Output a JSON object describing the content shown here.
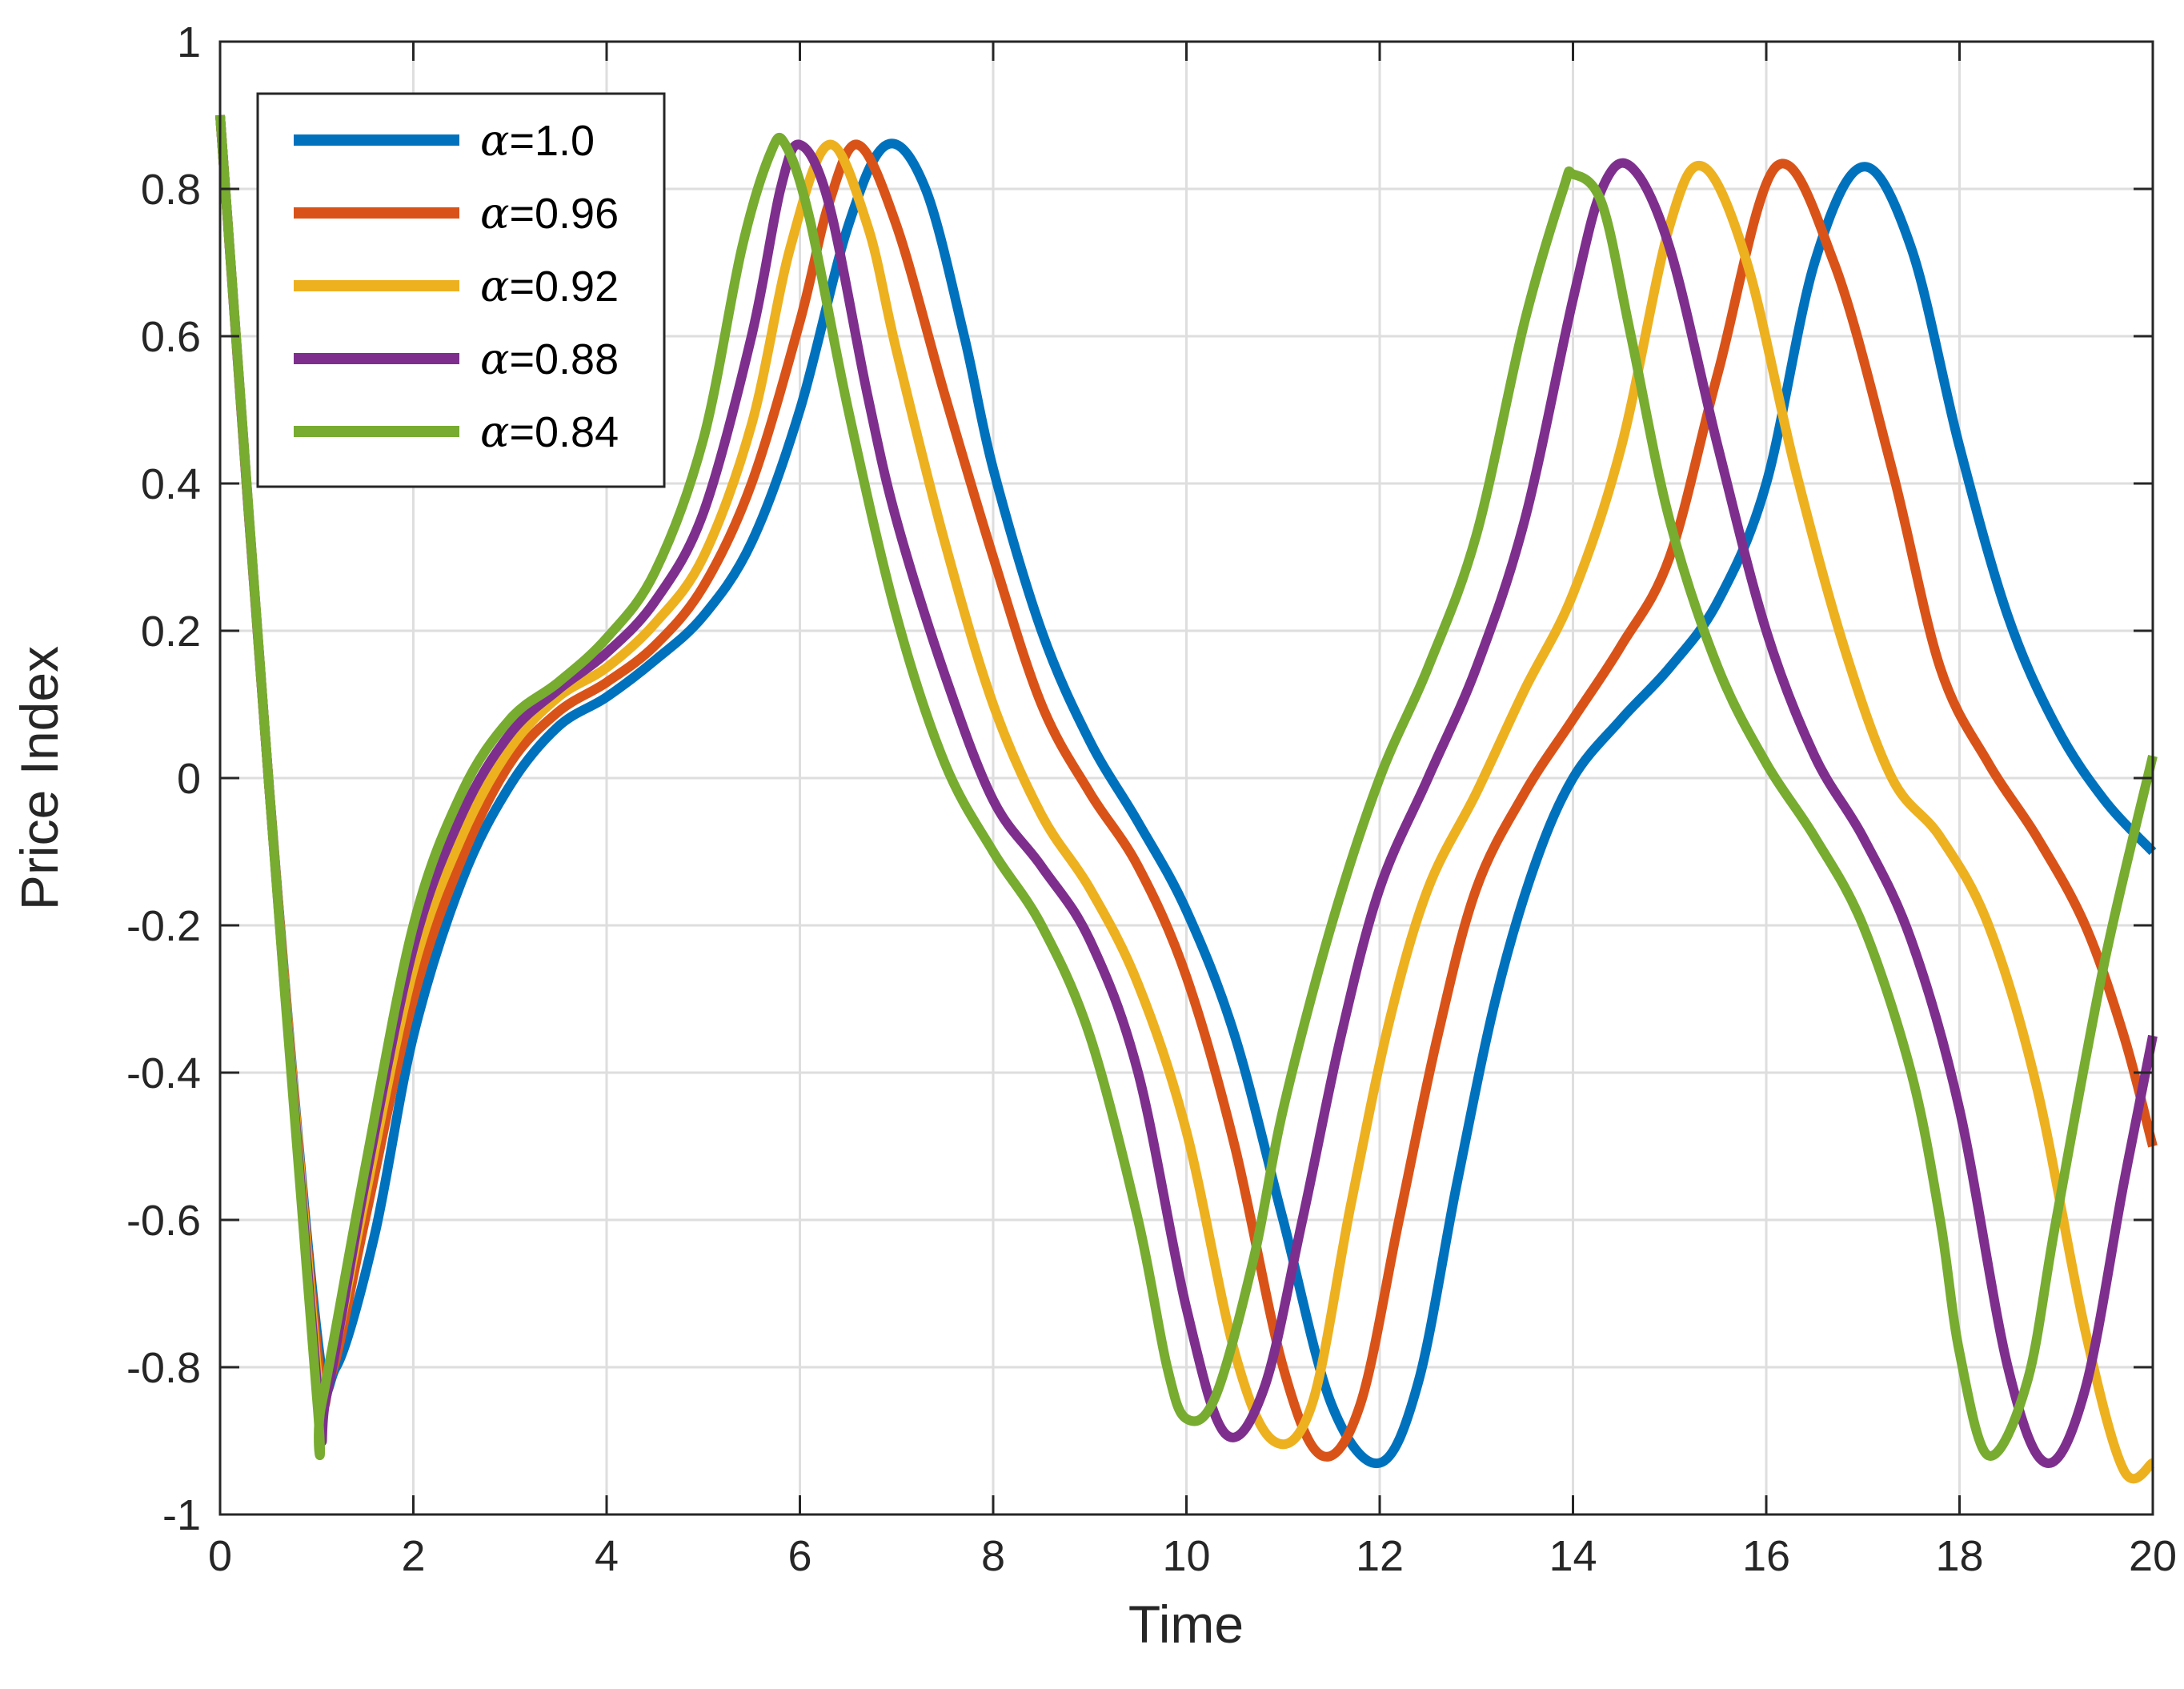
{
  "chart_data": {
    "type": "line",
    "xlabel": "Time",
    "ylabel": "Price Index",
    "xlim": [
      0,
      20
    ],
    "ylim": [
      -1,
      1
    ],
    "xticks": [
      0,
      2,
      4,
      6,
      8,
      10,
      12,
      14,
      16,
      18,
      20
    ],
    "xtick_labels": [
      "0",
      "2",
      "4",
      "6",
      "8",
      "10",
      "12",
      "14",
      "16",
      "18",
      "20"
    ],
    "yticks": [
      -1,
      -0.8,
      -0.6,
      -0.4,
      -0.2,
      0,
      0.2,
      0.4,
      0.6,
      0.8,
      1
    ],
    "ytick_labels": [
      "-1",
      "-0.8",
      "-0.6",
      "-0.4",
      "-0.2",
      "0",
      "0.2",
      "0.4",
      "0.6",
      "0.8",
      "1"
    ],
    "grid": true,
    "legend_position": "top-left",
    "series": [
      {
        "name": "α=1.0",
        "name_symbol": "α",
        "name_value": "=1.0",
        "color": "#0072BD",
        "x": [
          0,
          0.5,
          1.0,
          1.2,
          1.6,
          2.0,
          2.5,
          3.0,
          3.5,
          4.0,
          4.5,
          5.0,
          5.5,
          6.0,
          6.5,
          6.9,
          7.3,
          7.7,
          8.0,
          8.5,
          9.0,
          9.5,
          10.0,
          10.5,
          11.0,
          11.5,
          12.0,
          12.4,
          12.8,
          13.2,
          13.6,
          14.0,
          14.5,
          15.0,
          15.5,
          16.0,
          16.5,
          17.0,
          17.5,
          18.0,
          18.5,
          19.0,
          19.5,
          20.0
        ],
        "y": [
          0.9,
          0.0,
          -0.75,
          -0.8,
          -0.62,
          -0.35,
          -0.14,
          -0.01,
          0.07,
          0.11,
          0.16,
          0.22,
          0.32,
          0.5,
          0.75,
          0.86,
          0.8,
          0.6,
          0.42,
          0.2,
          0.05,
          -0.06,
          -0.18,
          -0.35,
          -0.6,
          -0.85,
          -0.93,
          -0.82,
          -0.55,
          -0.3,
          -0.12,
          0.0,
          0.08,
          0.15,
          0.24,
          0.4,
          0.7,
          0.83,
          0.72,
          0.45,
          0.22,
          0.07,
          -0.03,
          -0.1
        ]
      },
      {
        "name": "α=0.96",
        "name_symbol": "α",
        "name_value": "=0.96",
        "color": "#D95319",
        "x": [
          0,
          0.5,
          1.0,
          1.15,
          1.5,
          2.0,
          2.5,
          3.0,
          3.5,
          4.0,
          4.5,
          5.0,
          5.5,
          6.0,
          6.3,
          6.6,
          7.0,
          7.5,
          8.0,
          8.5,
          9.0,
          9.5,
          10.0,
          10.5,
          11.0,
          11.4,
          11.8,
          12.2,
          12.6,
          13.0,
          13.5,
          14.0,
          14.5,
          15.0,
          15.5,
          16.1,
          16.7,
          17.3,
          17.8,
          18.3,
          18.8,
          19.3,
          19.7,
          20.0
        ],
        "y": [
          0.9,
          0.0,
          -0.77,
          -0.81,
          -0.6,
          -0.3,
          -0.11,
          0.02,
          0.09,
          0.13,
          0.18,
          0.26,
          0.4,
          0.62,
          0.78,
          0.86,
          0.75,
          0.52,
          0.3,
          0.1,
          -0.02,
          -0.12,
          -0.27,
          -0.5,
          -0.8,
          -0.92,
          -0.85,
          -0.6,
          -0.35,
          -0.15,
          -0.02,
          0.08,
          0.18,
          0.3,
          0.55,
          0.83,
          0.7,
          0.42,
          0.15,
          0.02,
          -0.08,
          -0.2,
          -0.35,
          -0.5
        ]
      },
      {
        "name": "α=0.92",
        "name_symbol": "α",
        "name_value": "=0.92",
        "color": "#EDB120",
        "x": [
          0,
          0.5,
          1.0,
          1.1,
          1.5,
          2.0,
          2.5,
          3.0,
          3.5,
          4.0,
          4.5,
          5.0,
          5.5,
          5.9,
          6.3,
          6.7,
          7.0,
          7.5,
          8.0,
          8.5,
          9.0,
          9.5,
          10.0,
          10.5,
          10.9,
          11.3,
          11.7,
          12.1,
          12.5,
          13.0,
          13.5,
          14.0,
          14.5,
          15.0,
          15.35,
          15.8,
          16.3,
          16.8,
          17.3,
          17.8,
          18.3,
          18.8,
          19.3,
          19.7,
          20.0
        ],
        "y": [
          0.9,
          0.0,
          -0.8,
          -0.83,
          -0.57,
          -0.26,
          -0.08,
          0.04,
          0.11,
          0.15,
          0.21,
          0.3,
          0.48,
          0.72,
          0.86,
          0.75,
          0.58,
          0.32,
          0.1,
          -0.05,
          -0.15,
          -0.28,
          -0.48,
          -0.78,
          -0.9,
          -0.85,
          -0.58,
          -0.33,
          -0.15,
          -0.02,
          0.12,
          0.25,
          0.45,
          0.75,
          0.83,
          0.7,
          0.42,
          0.18,
          0.0,
          -0.08,
          -0.2,
          -0.42,
          -0.75,
          -0.94,
          -0.93
        ]
      },
      {
        "name": "α=0.88",
        "name_symbol": "α",
        "name_value": "=0.88",
        "color": "#7E2F8E",
        "x": [
          0,
          0.5,
          1.0,
          1.1,
          1.5,
          2.0,
          2.5,
          3.0,
          3.5,
          4.0,
          4.5,
          5.0,
          5.5,
          5.8,
          6.0,
          6.3,
          6.7,
          7.0,
          7.5,
          8.0,
          8.5,
          9.0,
          9.5,
          10.0,
          10.4,
          10.8,
          11.2,
          11.6,
          12.0,
          12.5,
          13.0,
          13.5,
          14.0,
          14.3,
          14.6,
          15.0,
          15.5,
          16.0,
          16.5,
          17.0,
          17.5,
          18.0,
          18.5,
          18.9,
          19.3,
          19.7,
          20.0
        ],
        "y": [
          0.9,
          0.0,
          -0.82,
          -0.84,
          -0.55,
          -0.23,
          -0.05,
          0.06,
          0.12,
          0.17,
          0.24,
          0.36,
          0.6,
          0.8,
          0.86,
          0.78,
          0.52,
          0.35,
          0.14,
          -0.03,
          -0.12,
          -0.22,
          -0.4,
          -0.72,
          -0.89,
          -0.83,
          -0.6,
          -0.35,
          -0.15,
          0.0,
          0.15,
          0.35,
          0.65,
          0.8,
          0.83,
          0.72,
          0.45,
          0.2,
          0.03,
          -0.08,
          -0.22,
          -0.45,
          -0.8,
          -0.93,
          -0.83,
          -0.55,
          -0.35
        ]
      },
      {
        "name": "α=0.84",
        "name_symbol": "α",
        "name_value": "=0.84",
        "color": "#77AC30",
        "x": [
          0,
          0.5,
          1.0,
          1.05,
          1.5,
          2.0,
          2.5,
          3.0,
          3.5,
          4.0,
          4.5,
          5.0,
          5.4,
          5.7,
          5.85,
          6.1,
          6.5,
          7.0,
          7.5,
          8.0,
          8.5,
          9.0,
          9.5,
          9.8,
          10.0,
          10.3,
          10.7,
          11.0,
          11.5,
          12.0,
          12.5,
          13.0,
          13.5,
          13.9,
          14.0,
          14.3,
          14.6,
          15.0,
          15.5,
          16.0,
          16.5,
          17.0,
          17.5,
          17.8,
          18.0,
          18.3,
          18.7,
          19.0,
          19.5,
          20.0
        ],
        "y": [
          0.9,
          0.0,
          -0.84,
          -0.85,
          -0.53,
          -0.2,
          -0.02,
          0.08,
          0.13,
          0.19,
          0.28,
          0.46,
          0.72,
          0.85,
          0.86,
          0.76,
          0.5,
          0.22,
          0.02,
          -0.1,
          -0.2,
          -0.35,
          -0.6,
          -0.8,
          -0.87,
          -0.84,
          -0.65,
          -0.45,
          -0.2,
          0.0,
          0.15,
          0.33,
          0.62,
          0.8,
          0.82,
          0.78,
          0.6,
          0.35,
          0.15,
          0.02,
          -0.08,
          -0.2,
          -0.4,
          -0.6,
          -0.78,
          -0.92,
          -0.82,
          -0.6,
          -0.25,
          0.03
        ]
      }
    ]
  }
}
